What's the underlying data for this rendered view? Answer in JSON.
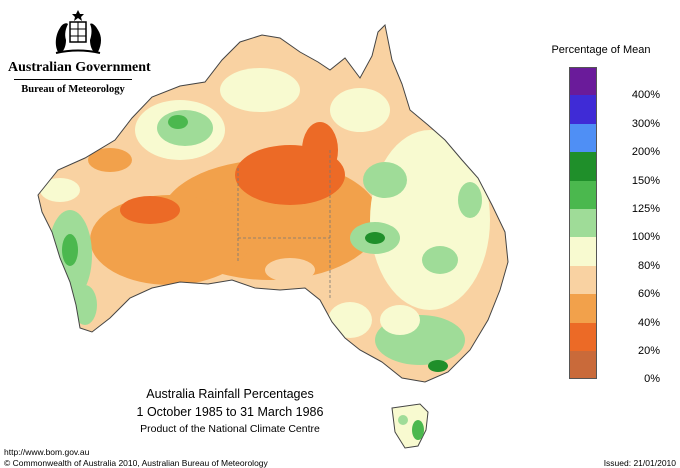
{
  "header": {
    "government": "Australian Government",
    "bureau": "Bureau of Meteorology",
    "crest_icon": "commonwealth-coat-of-arms-icon"
  },
  "legend": {
    "title": "Percentage of Mean",
    "classes": [
      {
        "label": "",
        "color": "#6a1b9a"
      },
      {
        "label": "400%",
        "color": "#3f2bd6"
      },
      {
        "label": "300%",
        "color": "#4f8ff5"
      },
      {
        "label": "200%",
        "color": "#1f8f2a"
      },
      {
        "label": "150%",
        "color": "#4bb84e"
      },
      {
        "label": "125%",
        "color": "#9fdc98"
      },
      {
        "label": "100%",
        "color": "#f8fad0"
      },
      {
        "label": "80%",
        "color": "#f9d2a2"
      },
      {
        "label": "60%",
        "color": "#f2a14b"
      },
      {
        "label": "40%",
        "color": "#ec6a26"
      },
      {
        "label": "20%",
        "color": "#c96a3a"
      },
      {
        "label": "0%",
        "color": ""
      }
    ]
  },
  "caption": {
    "title": "Australia Rainfall Percentages",
    "period": "1 October 1985 to 31 March 1986",
    "product": "Product of the National Climate Centre"
  },
  "footer": {
    "url": "http://www.bom.gov.au",
    "copyright": "© Commonwealth of Australia 2010, Australian Bureau of Meteorology",
    "issued": "Issued: 21/01/2010"
  }
}
